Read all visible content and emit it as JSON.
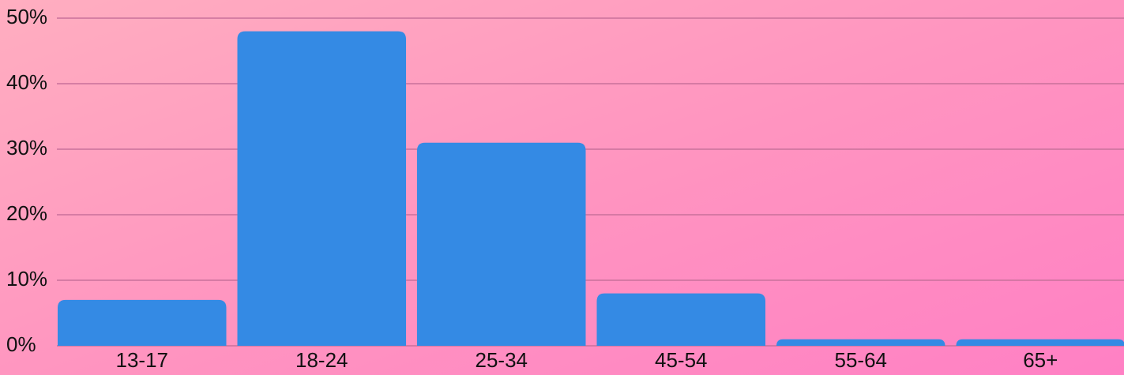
{
  "chart_data": {
    "type": "bar",
    "categories": [
      "13-17",
      "18-24",
      "25-34",
      "45-54",
      "55-64",
      "65+"
    ],
    "values": [
      7,
      48,
      31,
      8,
      1,
      1
    ],
    "color": "#348ae4",
    "ylim": [
      0,
      50
    ],
    "yticks": [
      {
        "value": 0,
        "label": "0%"
      },
      {
        "value": 10,
        "label": "10%"
      },
      {
        "value": 20,
        "label": "20%"
      },
      {
        "value": 30,
        "label": "30%"
      },
      {
        "value": 40,
        "label": "40%"
      },
      {
        "value": 50,
        "label": "50%"
      }
    ],
    "grid": true
  }
}
